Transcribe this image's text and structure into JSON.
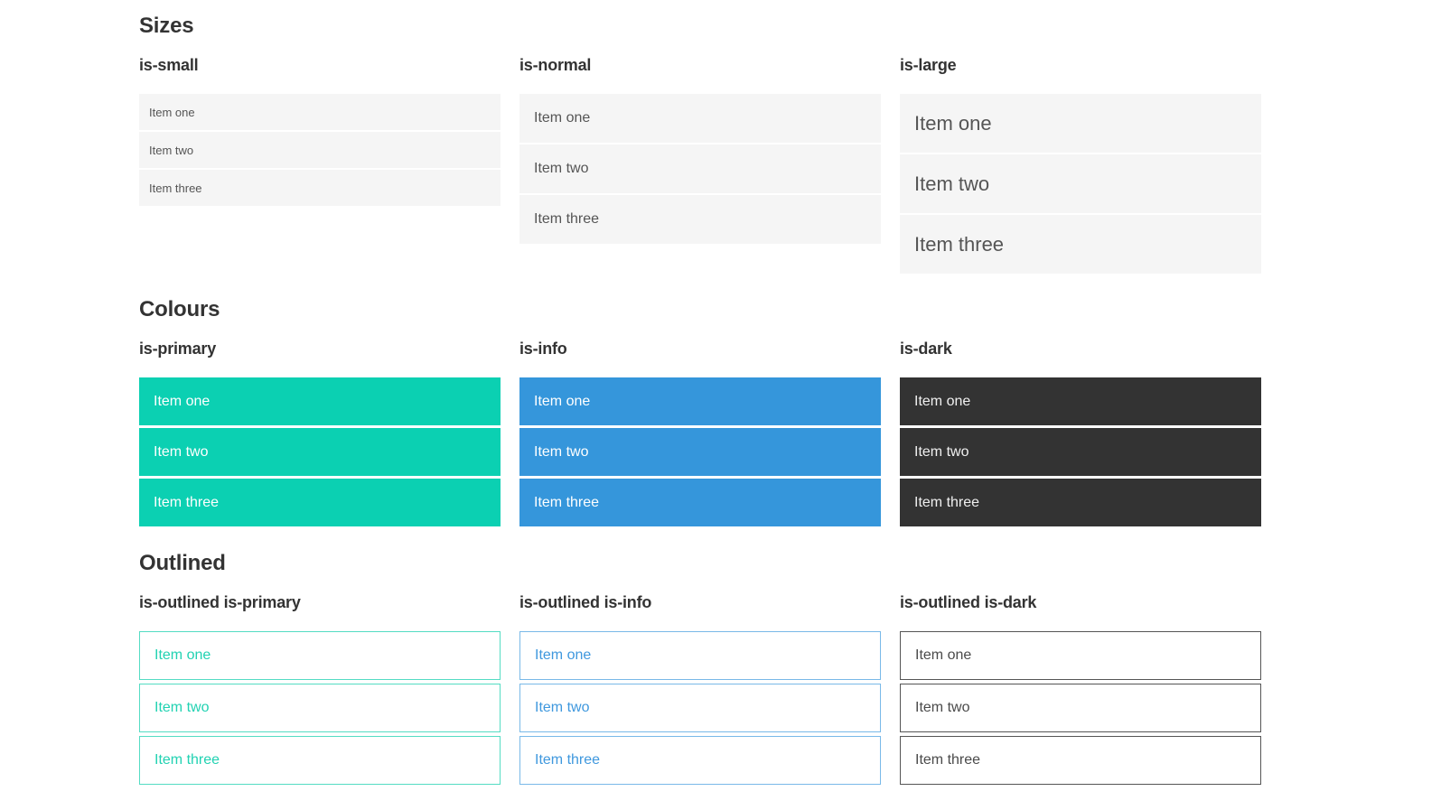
{
  "sections": [
    {
      "title": "Sizes",
      "groups": [
        {
          "label": "is-small",
          "variant": "small",
          "items": [
            "Item one",
            "Item two",
            "Item three"
          ]
        },
        {
          "label": "is-normal",
          "variant": "normal",
          "items": [
            "Item one",
            "Item two",
            "Item three"
          ]
        },
        {
          "label": "is-large",
          "variant": "large",
          "items": [
            "Item one",
            "Item two",
            "Item three"
          ]
        }
      ]
    },
    {
      "title": "Colours",
      "groups": [
        {
          "label": "is-primary",
          "variant": "primary",
          "items": [
            "Item one",
            "Item two",
            "Item three"
          ]
        },
        {
          "label": "is-info",
          "variant": "info",
          "items": [
            "Item one",
            "Item two",
            "Item three"
          ]
        },
        {
          "label": "is-dark",
          "variant": "dark",
          "items": [
            "Item one",
            "Item two",
            "Item three"
          ]
        }
      ]
    },
    {
      "title": "Outlined",
      "groups": [
        {
          "label": "is-outlined is-primary",
          "variant": "o-primary",
          "items": [
            "Item one",
            "Item two",
            "Item three"
          ]
        },
        {
          "label": "is-outlined is-info",
          "variant": "o-info",
          "items": [
            "Item one",
            "Item two",
            "Item three"
          ]
        },
        {
          "label": "is-outlined is-dark",
          "variant": "o-dark",
          "items": [
            "Item one",
            "Item two",
            "Item three"
          ]
        }
      ]
    }
  ],
  "colors": {
    "heading": "#333333",
    "primary": "#0bd0b2",
    "info": "#3596db",
    "dark": "#333333",
    "white": "#ffffff",
    "light_bg": "#f5f5f5",
    "item_text": "#555555",
    "dark_item_text": "#f0f0f0",
    "outlined_primary_border": "#54dcc3",
    "outlined_primary_text": "#21d2b2",
    "outlined_info_border": "#79b9e8",
    "outlined_info_text": "#3f98de",
    "outlined_dark_border": "#555555",
    "outlined_dark_text": "#4a4a4a"
  }
}
